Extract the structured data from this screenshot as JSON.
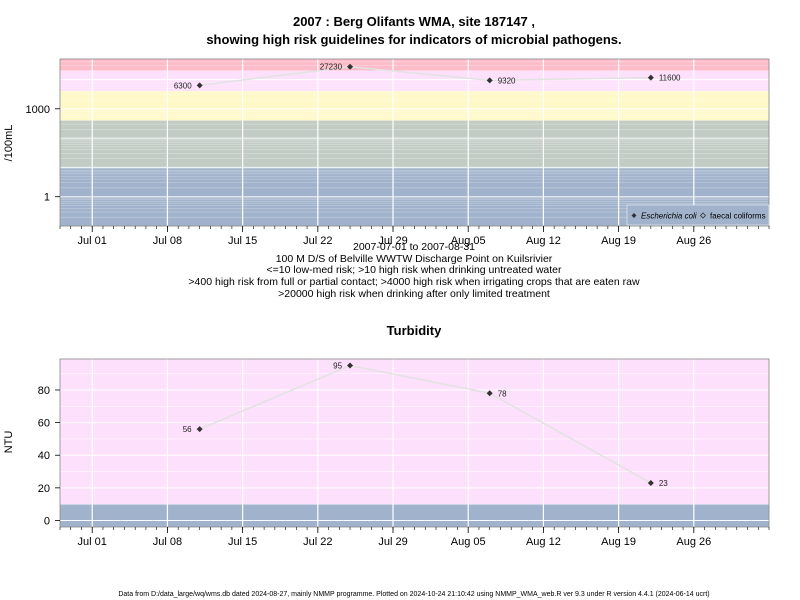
{
  "chart_data": [
    {
      "type": "line",
      "title_line1": "2007 : Berg Olifants WMA, site 187147 ,",
      "title_line2": "showing high risk guidelines for indicators of microbial pathogens.",
      "ylabel": "/100mL",
      "y_scale": "log10",
      "y_ticks": [
        {
          "value": 1,
          "label": "1"
        },
        {
          "value": 1000,
          "label": "1000"
        }
      ],
      "ylim": [
        0.1,
        50000
      ],
      "x_ticks": [
        {
          "date": "2007-07-01",
          "label": "Jul 01"
        },
        {
          "date": "2007-07-08",
          "label": "Jul 08"
        },
        {
          "date": "2007-07-15",
          "label": "Jul 15"
        },
        {
          "date": "2007-07-22",
          "label": "Jul 22"
        },
        {
          "date": "2007-07-29",
          "label": "Jul 29"
        },
        {
          "date": "2007-08-05",
          "label": "Aug 05"
        },
        {
          "date": "2007-08-12",
          "label": "Aug 12"
        },
        {
          "date": "2007-08-19",
          "label": "Aug 19"
        },
        {
          "date": "2007-08-26",
          "label": "Aug 26"
        }
      ],
      "xlim": [
        "2007-06-28",
        "2007-09-02"
      ],
      "bands": [
        {
          "from": 0.1,
          "to": 10,
          "color": "#a1b3cc"
        },
        {
          "from": 10,
          "to": 400,
          "color": "#c2ccc5"
        },
        {
          "from": 400,
          "to": 4000,
          "color": "#fff9c9"
        },
        {
          "from": 4000,
          "to": 20000,
          "color": "#fde0fb"
        },
        {
          "from": 20000,
          "to": 50000,
          "color": "#fdbcc9"
        }
      ],
      "series": [
        {
          "name": "Escherichia coli",
          "x": [
            "2007-07-11",
            "2007-07-25",
            "2007-08-07",
            "2007-08-22"
          ],
          "y": [
            6300,
            27230,
            9320,
            11600
          ],
          "labels": [
            "6300",
            "27230",
            "9320",
            "11600"
          ]
        }
      ],
      "legend": {
        "position": "bottom-right",
        "entries": [
          {
            "label": "Escherichia coli",
            "marker": "filled-diamond"
          },
          {
            "label": "faecal coliforms",
            "marker": "open-diamond"
          }
        ]
      },
      "subtitle_lines": [
        "2007-07-01 to 2007-08-31",
        "100 M D/S of Belville WWTW Discharge Point on Kuilsrivier",
        "<=10 low-med risk; >10 high risk when drinking untreated water",
        ">400 high risk from full or partial contact; >4000 high risk when irrigating crops that are eaten raw",
        ">20000 high risk when drinking after only limited treatment"
      ],
      "grid": true
    },
    {
      "type": "line",
      "title": "Turbidity",
      "ylabel": "NTU",
      "y_ticks": [
        {
          "value": 0,
          "label": "0"
        },
        {
          "value": 20,
          "label": "20"
        },
        {
          "value": 40,
          "label": "40"
        },
        {
          "value": 60,
          "label": "60"
        },
        {
          "value": 80,
          "label": "80"
        }
      ],
      "ylim": [
        -4,
        99
      ],
      "x_ticks": [
        {
          "date": "2007-07-01",
          "label": "Jul 01"
        },
        {
          "date": "2007-07-08",
          "label": "Jul 08"
        },
        {
          "date": "2007-07-15",
          "label": "Jul 15"
        },
        {
          "date": "2007-07-22",
          "label": "Jul 22"
        },
        {
          "date": "2007-07-29",
          "label": "Jul 29"
        },
        {
          "date": "2007-08-05",
          "label": "Aug 05"
        },
        {
          "date": "2007-08-12",
          "label": "Aug 12"
        },
        {
          "date": "2007-08-19",
          "label": "Aug 19"
        },
        {
          "date": "2007-08-26",
          "label": "Aug 26"
        }
      ],
      "xlim": [
        "2007-06-28",
        "2007-09-02"
      ],
      "bands": [
        {
          "from": -4,
          "to": 10,
          "color": "#a1b3cc"
        },
        {
          "from": 10,
          "to": 99,
          "color": "#fde0fb"
        }
      ],
      "series": [
        {
          "x": [
            "2007-07-11",
            "2007-07-25",
            "2007-08-07",
            "2007-08-22"
          ],
          "y": [
            56,
            95,
            78,
            23
          ],
          "labels": [
            "56",
            "95",
            "78",
            "23"
          ]
        }
      ],
      "grid": true
    }
  ],
  "footer": "Data from D:/data_large/wq/wms.db dated 2024-08-27, mainly NMMP programme. Plotted on 2024-10-24 21:10:42 using NMMP_WMA_web.R ver 9.3 under R version 4.4.1 (2024-06-14 ucrt)"
}
